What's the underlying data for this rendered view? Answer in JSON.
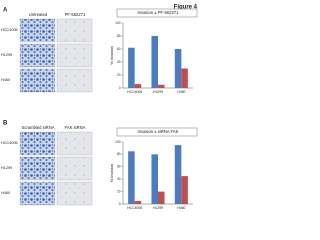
{
  "figure_title": "Figure 4",
  "panels": [
    {
      "label": "A",
      "columns": [
        "Untreated",
        "PF-562271"
      ],
      "rows": [
        "HCC4006",
        "H1299",
        "H460"
      ]
    },
    {
      "label": "B",
      "columns": [
        "Scrambled siRNA",
        "FAK siRNA"
      ],
      "rows": [
        "HCC4006",
        "H1299",
        "H460"
      ]
    }
  ],
  "chart_data": [
    {
      "type": "bar",
      "title": "Invasion ± PF-562271",
      "y_label": "% Invasion",
      "categories": [
        "HCC4006",
        "H1299",
        "H460"
      ],
      "series": [
        {
          "color": "#4a7cc4",
          "values": [
            62,
            80,
            60
          ]
        },
        {
          "color": "#c0504d",
          "values": [
            6,
            5,
            30
          ]
        }
      ],
      "ylim": [
        0,
        100
      ],
      "yticks": [
        0,
        20,
        40,
        60,
        80,
        100
      ]
    },
    {
      "type": "bar",
      "title": "Invasion ± siRNA FAK",
      "y_label": "% Invasion",
      "categories": [
        "HCC4006",
        "H1299",
        "H460"
      ],
      "series": [
        {
          "color": "#4a7cc4",
          "values": [
            85,
            80,
            95
          ]
        },
        {
          "color": "#c0504d",
          "values": [
            5,
            20,
            45
          ]
        }
      ],
      "ylim": [
        0,
        100
      ],
      "yticks": [
        0,
        20,
        40,
        60,
        80,
        100
      ]
    }
  ]
}
